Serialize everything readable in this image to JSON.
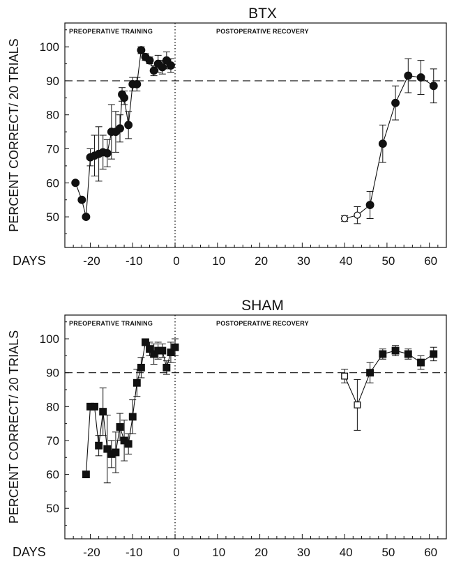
{
  "chart_data": [
    {
      "type": "scatter",
      "title": "BTX",
      "xlabel": "DAYS",
      "ylabel": "PERCENT CORRECT/ 20 TRIALS",
      "xlim": [
        -26,
        64
      ],
      "ylim": [
        41,
        107
      ],
      "x_ticks": [
        -20,
        -10,
        0,
        10,
        20,
        30,
        40,
        50,
        60
      ],
      "y_ticks": [
        50,
        60,
        70,
        80,
        90,
        100
      ],
      "reference_line_y": 90,
      "divider_x": 0,
      "section_labels": [
        "PREOPERATIVE TRAINING",
        "POSTOPERATIVE RECOVERY"
      ],
      "marker": "circle",
      "series": [
        {
          "connected": true,
          "points": [
            {
              "x": -23.5,
              "y": 60,
              "err": 0
            },
            {
              "x": -22,
              "y": 55,
              "err": 0
            },
            {
              "x": -21,
              "y": 50,
              "err": 0
            },
            {
              "x": -20,
              "y": 67.5,
              "err": 2.5
            },
            {
              "x": -19,
              "y": 68,
              "err": 6
            },
            {
              "x": -18,
              "y": 68.5,
              "err": 8
            },
            {
              "x": -17,
              "y": 69,
              "err": 5
            },
            {
              "x": -16,
              "y": 68.7,
              "err": 4
            },
            {
              "x": -15,
              "y": 75,
              "err": 8
            },
            {
              "x": -14,
              "y": 75,
              "err": 6
            },
            {
              "x": -13,
              "y": 76,
              "err": 4
            },
            {
              "x": -12.5,
              "y": 86,
              "err": 2
            },
            {
              "x": -12,
              "y": 85,
              "err": 2
            },
            {
              "x": -11,
              "y": 77,
              "err": 4
            },
            {
              "x": -10,
              "y": 89,
              "err": 2
            },
            {
              "x": -9,
              "y": 89,
              "err": 2
            },
            {
              "x": -8,
              "y": 99,
              "err": 1
            },
            {
              "x": -7,
              "y": 97,
              "err": 1
            },
            {
              "x": -6,
              "y": 96,
              "err": 1
            },
            {
              "x": -5,
              "y": 93,
              "err": 1.5
            },
            {
              "x": -4,
              "y": 95,
              "err": 2.5
            },
            {
              "x": -3,
              "y": 94,
              "err": 2
            },
            {
              "x": -2,
              "y": 96,
              "err": 2.5
            },
            {
              "x": -1,
              "y": 94.5,
              "err": 2
            }
          ]
        },
        {
          "connected": true,
          "points": [
            {
              "x": 40,
              "y": 49.5,
              "err": 0.8,
              "open": true
            },
            {
              "x": 43,
              "y": 50.5,
              "err": 2.5,
              "open": true
            },
            {
              "x": 46,
              "y": 53.5,
              "err": 4,
              "open": false
            },
            {
              "x": 49,
              "y": 71.5,
              "err": 5.5,
              "open": false
            },
            {
              "x": 52,
              "y": 83.5,
              "err": 5,
              "open": false
            },
            {
              "x": 55,
              "y": 91.5,
              "err": 5,
              "open": false
            },
            {
              "x": 58,
              "y": 91,
              "err": 5,
              "open": false
            },
            {
              "x": 61,
              "y": 88.5,
              "err": 5,
              "open": false
            }
          ]
        }
      ]
    },
    {
      "type": "scatter",
      "title": "SHAM",
      "xlabel": "DAYS",
      "ylabel": "PERCENT CORRECT/ 20 TRIALS",
      "xlim": [
        -26,
        64
      ],
      "ylim": [
        41,
        107
      ],
      "x_ticks": [
        -20,
        -10,
        0,
        10,
        20,
        30,
        40,
        50,
        60
      ],
      "y_ticks": [
        50,
        60,
        70,
        80,
        90,
        100
      ],
      "reference_line_y": 90,
      "divider_x": 0,
      "section_labels": [
        "PREOPERATIVE TRAINING",
        "POSTOPERATIVE RECOVERY"
      ],
      "marker": "square",
      "series": [
        {
          "connected": true,
          "points": [
            {
              "x": -21,
              "y": 60,
              "err": 0
            },
            {
              "x": -20,
              "y": 80,
              "err": 0
            },
            {
              "x": -19,
              "y": 80,
              "err": 0
            },
            {
              "x": -18,
              "y": 68.5,
              "err": 3
            },
            {
              "x": -17,
              "y": 78.5,
              "err": 7
            },
            {
              "x": -16,
              "y": 67.5,
              "err": 10
            },
            {
              "x": -15,
              "y": 66,
              "err": 4
            },
            {
              "x": -14,
              "y": 66.5,
              "err": 6
            },
            {
              "x": -13,
              "y": 74,
              "err": 4
            },
            {
              "x": -12,
              "y": 70,
              "err": 6
            },
            {
              "x": -11,
              "y": 69,
              "err": 3
            },
            {
              "x": -10,
              "y": 77,
              "err": 5
            },
            {
              "x": -9,
              "y": 87,
              "err": 4
            },
            {
              "x": -8,
              "y": 91.5,
              "err": 3
            },
            {
              "x": -7,
              "y": 99,
              "err": 1
            },
            {
              "x": -6,
              "y": 97,
              "err": 2
            },
            {
              "x": -5,
              "y": 95.5,
              "err": 3
            },
            {
              "x": -4,
              "y": 96.5,
              "err": 2.5
            },
            {
              "x": -3,
              "y": 96.5,
              "err": 2
            },
            {
              "x": -2,
              "y": 91.5,
              "err": 2
            },
            {
              "x": -1,
              "y": 96,
              "err": 3
            },
            {
              "x": 0,
              "y": 97.5,
              "err": 2.5
            }
          ]
        },
        {
          "connected": true,
          "points": [
            {
              "x": 40,
              "y": 89,
              "err": 2,
              "open": true
            },
            {
              "x": 43,
              "y": 80.5,
              "err": 7.5,
              "open": true
            },
            {
              "x": 46,
              "y": 90,
              "err": 3,
              "open": false
            },
            {
              "x": 49,
              "y": 95.5,
              "err": 1.5,
              "open": false
            },
            {
              "x": 52,
              "y": 96.5,
              "err": 1.5,
              "open": false
            },
            {
              "x": 55,
              "y": 95.5,
              "err": 1.5,
              "open": false
            },
            {
              "x": 58,
              "y": 93,
              "err": 2,
              "open": false
            },
            {
              "x": 61,
              "y": 95.5,
              "err": 2,
              "open": false
            }
          ]
        }
      ]
    }
  ]
}
